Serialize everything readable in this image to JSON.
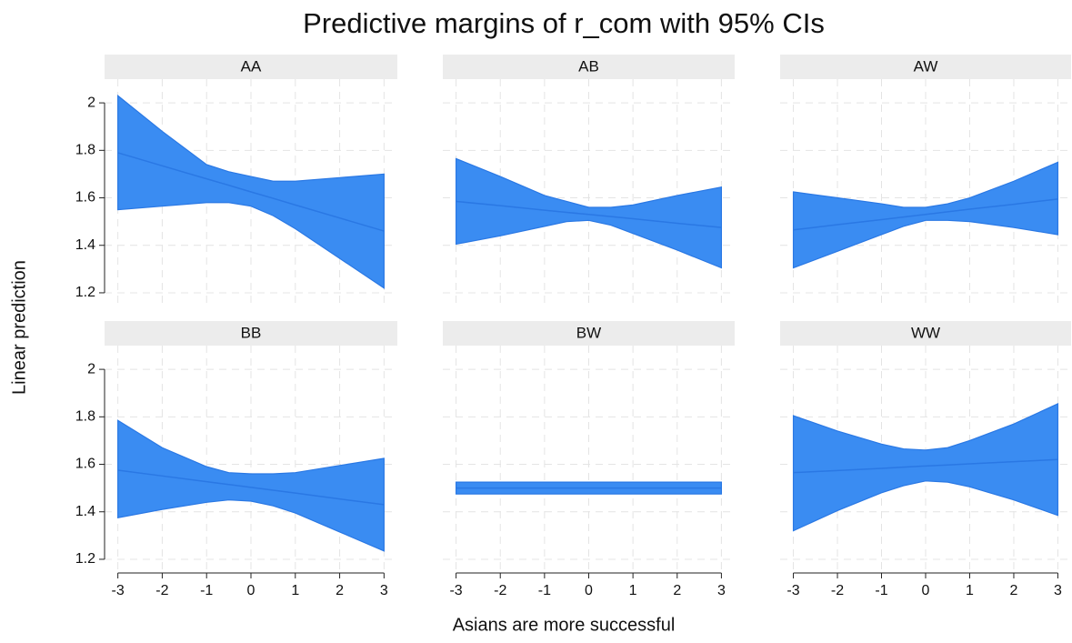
{
  "chart_data": {
    "type": "band",
    "title": "Predictive margins of r_com with 95% CIs",
    "x_label": "Asians are more successful",
    "y_label": "Linear prediction",
    "x": [
      -3,
      -2,
      -1,
      -0.5,
      0,
      0.5,
      1,
      2,
      3
    ],
    "xlim": [
      -3.3,
      3.3
    ],
    "ylim": [
      1.15,
      2.1
    ],
    "xticks": [
      -3,
      -2,
      -1,
      0,
      1,
      2,
      3
    ],
    "yticks": [
      1.2,
      1.4,
      1.6,
      1.8,
      2
    ],
    "grid": true,
    "color": "#3a8cf2",
    "line_color": "#2a78e4",
    "panels": [
      {
        "title": "AA",
        "estimate": [
          1.79,
          1.735,
          1.68,
          1.653,
          1.625,
          1.598,
          1.57,
          1.515,
          1.46
        ],
        "lower": [
          1.55,
          1.565,
          1.58,
          1.58,
          1.565,
          1.525,
          1.47,
          1.345,
          1.22
        ],
        "upper": [
          2.03,
          1.88,
          1.74,
          1.71,
          1.69,
          1.67,
          1.67,
          1.685,
          1.7
        ]
      },
      {
        "title": "AB",
        "estimate": [
          1.585,
          1.567,
          1.548,
          1.539,
          1.53,
          1.521,
          1.512,
          1.493,
          1.475
        ],
        "lower": [
          1.405,
          1.44,
          1.48,
          1.5,
          1.505,
          1.485,
          1.45,
          1.38,
          1.305
        ],
        "upper": [
          1.765,
          1.69,
          1.61,
          1.585,
          1.56,
          1.56,
          1.57,
          1.61,
          1.645
        ]
      },
      {
        "title": "AW",
        "estimate": [
          1.465,
          1.487,
          1.508,
          1.519,
          1.53,
          1.541,
          1.552,
          1.573,
          1.595
        ],
        "lower": [
          1.305,
          1.375,
          1.445,
          1.48,
          1.505,
          1.505,
          1.5,
          1.475,
          1.445
        ],
        "upper": [
          1.625,
          1.6,
          1.575,
          1.56,
          1.56,
          1.575,
          1.6,
          1.67,
          1.75
        ]
      },
      {
        "title": "BB",
        "estimate": [
          1.575,
          1.551,
          1.527,
          1.515,
          1.503,
          1.491,
          1.479,
          1.454,
          1.43
        ],
        "lower": [
          1.375,
          1.41,
          1.44,
          1.45,
          1.445,
          1.425,
          1.395,
          1.315,
          1.235
        ],
        "upper": [
          1.785,
          1.67,
          1.59,
          1.565,
          1.56,
          1.56,
          1.565,
          1.595,
          1.625
        ]
      },
      {
        "title": "BW",
        "estimate": [
          1.5,
          1.5,
          1.5,
          1.5,
          1.5,
          1.5,
          1.5,
          1.5,
          1.5
        ],
        "lower": [
          1.475,
          1.475,
          1.475,
          1.475,
          1.475,
          1.475,
          1.475,
          1.475,
          1.475
        ],
        "upper": [
          1.525,
          1.525,
          1.525,
          1.525,
          1.525,
          1.525,
          1.525,
          1.525,
          1.525
        ]
      },
      {
        "title": "WW",
        "estimate": [
          1.565,
          1.574,
          1.583,
          1.588,
          1.593,
          1.597,
          1.602,
          1.611,
          1.62
        ],
        "lower": [
          1.32,
          1.405,
          1.48,
          1.51,
          1.53,
          1.525,
          1.505,
          1.45,
          1.385
        ],
        "upper": [
          1.805,
          1.74,
          1.685,
          1.665,
          1.66,
          1.67,
          1.7,
          1.77,
          1.855
        ]
      }
    ]
  }
}
